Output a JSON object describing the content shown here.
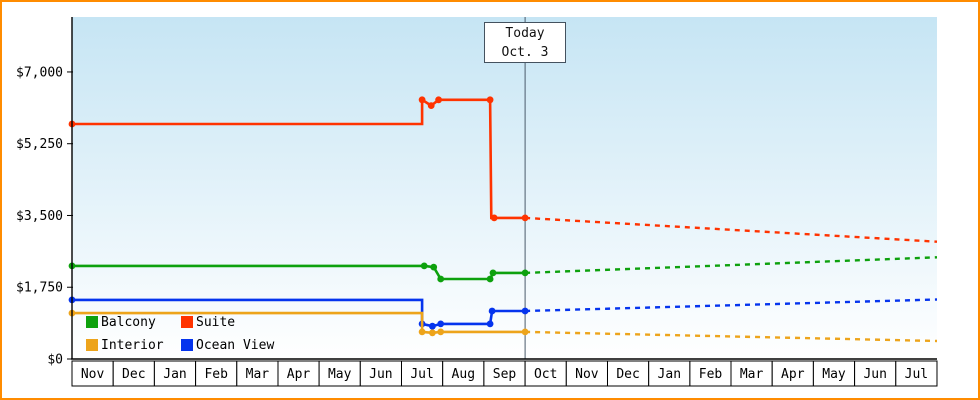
{
  "chart_data": {
    "type": "line",
    "y_axis": {
      "tick_values": [
        0,
        1750,
        3500,
        5250,
        7000
      ],
      "tick_labels": [
        "$0",
        "$1,750",
        "$3,500",
        "$5,250",
        "$7,000"
      ],
      "max_value": 8340
    },
    "x_axis": {
      "months": [
        "Nov",
        "Dec",
        "Jan",
        "Feb",
        "Mar",
        "Apr",
        "May",
        "Jun",
        "Jul",
        "Aug",
        "Sep",
        "Oct",
        "Nov",
        "Dec",
        "Jan",
        "Feb",
        "Mar",
        "Apr",
        "May",
        "Jun",
        "Jul"
      ]
    },
    "today": {
      "label": "Today",
      "sublabel": "Oct. 3",
      "month_position": 11
    },
    "series": [
      {
        "name": "Suite",
        "color": "#ff3300",
        "history": [
          [
            0,
            5730
          ],
          [
            8.5,
            5730
          ],
          [
            8.5,
            6320
          ],
          [
            8.72,
            6180
          ],
          [
            8.9,
            6320
          ],
          [
            10.15,
            6320
          ],
          [
            10.18,
            3440
          ],
          [
            11,
            3440
          ]
        ],
        "forecast": [
          [
            11,
            3440
          ],
          [
            21,
            2860
          ]
        ],
        "markers": [
          [
            0,
            5730
          ],
          [
            8.5,
            6320
          ],
          [
            8.72,
            6180
          ],
          [
            8.9,
            6320
          ],
          [
            10.15,
            6320
          ],
          [
            10.25,
            3440
          ],
          [
            11,
            3440
          ]
        ]
      },
      {
        "name": "Balcony",
        "color": "#0da10d",
        "history": [
          [
            0,
            2270
          ],
          [
            8.55,
            2270
          ],
          [
            8.78,
            2240
          ],
          [
            8.95,
            1950
          ],
          [
            10.15,
            1950
          ],
          [
            10.22,
            2100
          ],
          [
            11,
            2100
          ]
        ],
        "forecast": [
          [
            11,
            2100
          ],
          [
            21,
            2480
          ]
        ],
        "markers": [
          [
            0,
            2270
          ],
          [
            8.55,
            2270
          ],
          [
            8.78,
            2240
          ],
          [
            8.95,
            1950
          ],
          [
            10.15,
            1950
          ],
          [
            10.22,
            2100
          ],
          [
            11,
            2100
          ]
        ]
      },
      {
        "name": "Ocean View",
        "color": "#0534ee",
        "history": [
          [
            0,
            1440
          ],
          [
            8.5,
            1440
          ],
          [
            8.5,
            855
          ],
          [
            8.75,
            800
          ],
          [
            8.95,
            855
          ],
          [
            10.15,
            855
          ],
          [
            10.2,
            1170
          ],
          [
            11,
            1170
          ]
        ],
        "forecast": [
          [
            11,
            1170
          ],
          [
            21,
            1450
          ]
        ],
        "markers": [
          [
            0,
            1440
          ],
          [
            8.5,
            855
          ],
          [
            8.75,
            800
          ],
          [
            8.95,
            855
          ],
          [
            10.15,
            855
          ],
          [
            10.2,
            1170
          ],
          [
            11,
            1170
          ]
        ]
      },
      {
        "name": "Interior",
        "color": "#eda41b",
        "history": [
          [
            0,
            1120
          ],
          [
            8.5,
            1120
          ],
          [
            8.5,
            660
          ],
          [
            8.75,
            640
          ],
          [
            8.95,
            660
          ],
          [
            11,
            660
          ]
        ],
        "forecast": [
          [
            11,
            660
          ],
          [
            21,
            440
          ]
        ],
        "markers": [
          [
            0,
            1120
          ],
          [
            8.5,
            660
          ],
          [
            8.75,
            640
          ],
          [
            8.95,
            660
          ],
          [
            11,
            660
          ]
        ]
      }
    ],
    "legend": [
      {
        "label": "Balcony",
        "color": "#0da10d"
      },
      {
        "label": "Suite",
        "color": "#ff3300"
      },
      {
        "label": "Interior",
        "color": "#eda41b"
      },
      {
        "label": "Ocean View",
        "color": "#0534ee"
      }
    ]
  },
  "colors": {
    "frame_border": "#ff8c00",
    "plot_bg_top": "#c6e5f4",
    "plot_bg_bottom": "#ffffff",
    "axis": "#000000",
    "today_line": "#4a5a6a"
  }
}
